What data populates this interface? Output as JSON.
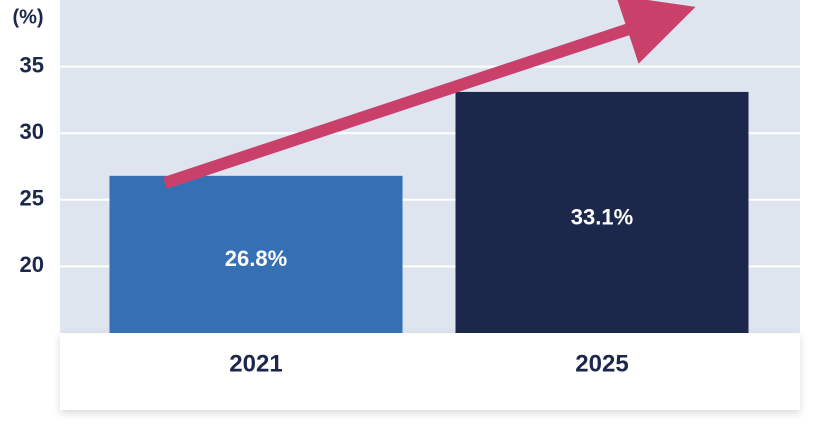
{
  "chart_data": {
    "type": "bar",
    "y_label": "(%)",
    "categories": [
      "2021",
      "2025"
    ],
    "values": [
      26.8,
      33.1
    ],
    "value_labels": [
      "26.8%",
      "33.1%"
    ],
    "colors": [
      "#3670b4",
      "#1b274b"
    ],
    "ylim": [
      15,
      40
    ],
    "yticks": [
      20,
      25,
      30,
      35
    ],
    "grid": true
  }
}
